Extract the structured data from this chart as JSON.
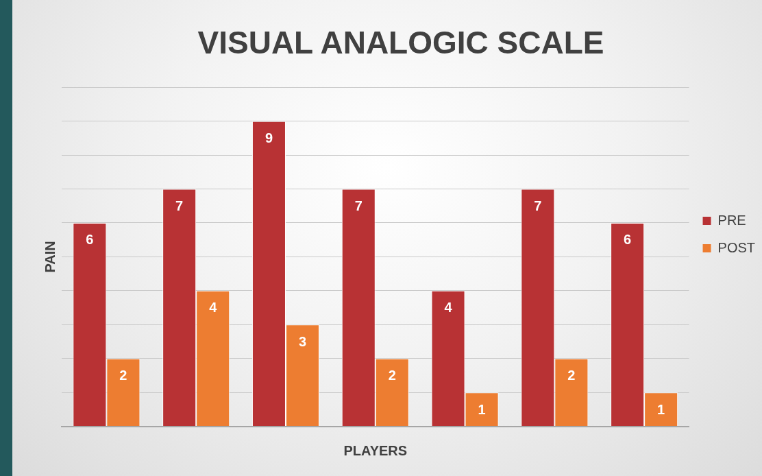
{
  "chart_data": {
    "type": "bar",
    "title": "VISUAL ANALOGIC SCALE",
    "xlabel": "PLAYERS",
    "ylabel": "PAIN",
    "categories": [
      null,
      null,
      null,
      null,
      null,
      null,
      null
    ],
    "series": [
      {
        "name": "PRE",
        "color": "#b83234",
        "values": [
          6,
          7,
          9,
          7,
          4,
          7,
          6
        ]
      },
      {
        "name": "POST",
        "color": "#ed7d31",
        "values": [
          2,
          4,
          3,
          2,
          1,
          2,
          1
        ]
      }
    ],
    "ylim": [
      0,
      10
    ],
    "yticks": [
      {
        "value": 0,
        "label": null
      },
      {
        "value": 1,
        "label": null
      },
      {
        "value": 2,
        "label": null
      },
      {
        "value": 3,
        "label": null
      },
      {
        "value": 4,
        "label": null
      },
      {
        "value": 5,
        "label": null
      },
      {
        "value": 6,
        "label": null
      },
      {
        "value": 7,
        "label": null
      },
      {
        "value": 8,
        "label": null
      },
      {
        "value": 9,
        "label": null
      },
      {
        "value": 10,
        "label": null
      }
    ],
    "grid": "y",
    "legend": "right",
    "data_labels": true
  }
}
